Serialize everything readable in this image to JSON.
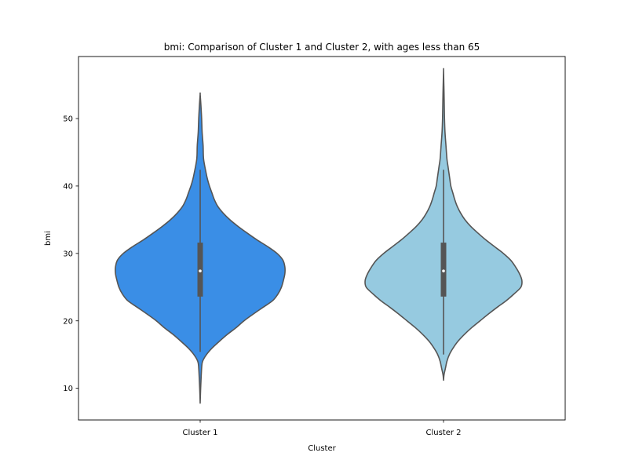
{
  "chart_data": {
    "type": "violin",
    "title": "bmi: Comparison of Cluster 1 and Cluster 2, with ages less than 65",
    "xlabel": "Cluster",
    "ylabel": "bmi",
    "categories": [
      "Cluster 1",
      "Cluster 2"
    ],
    "ylim": [
      5.3,
      59.2
    ],
    "yticks": [
      10,
      20,
      30,
      40,
      50
    ],
    "grid": false,
    "legend": "none",
    "series": [
      {
        "category": "Cluster 1",
        "color": "#3a8ee6",
        "min": 7.8,
        "max": 53.6,
        "q1": 23.6,
        "median": 27.4,
        "q3": 31.6,
        "whisker_low": 15.4,
        "whisker_high": 42.4,
        "density_profile": [
          [
            7.8,
            0.0
          ],
          [
            10,
            0.01
          ],
          [
            13,
            0.03
          ],
          [
            14,
            0.05
          ],
          [
            15,
            0.13
          ],
          [
            16,
            0.25
          ],
          [
            17,
            0.4
          ],
          [
            18,
            0.56
          ],
          [
            19,
            0.74
          ],
          [
            20,
            0.9
          ],
          [
            21,
            1.09
          ],
          [
            22,
            1.29
          ],
          [
            23,
            1.49
          ],
          [
            24,
            1.6
          ],
          [
            25,
            1.67
          ],
          [
            26,
            1.71
          ],
          [
            27,
            1.74
          ],
          [
            28,
            1.74
          ],
          [
            29,
            1.7
          ],
          [
            30,
            1.58
          ],
          [
            31,
            1.39
          ],
          [
            32,
            1.17
          ],
          [
            33,
            0.97
          ],
          [
            34,
            0.78
          ],
          [
            35,
            0.61
          ],
          [
            36,
            0.47
          ],
          [
            37,
            0.36
          ],
          [
            38,
            0.29
          ],
          [
            39,
            0.24
          ],
          [
            40,
            0.19
          ],
          [
            41,
            0.15
          ],
          [
            42,
            0.12
          ],
          [
            44,
            0.07
          ],
          [
            46,
            0.06
          ],
          [
            48,
            0.04
          ],
          [
            50,
            0.03
          ],
          [
            52,
            0.015
          ],
          [
            53.6,
            0.0
          ]
        ]
      },
      {
        "category": "Cluster 2",
        "color": "#96cae0",
        "min": 11.2,
        "max": 57.2,
        "q1": 23.6,
        "median": 27.4,
        "q3": 31.6,
        "whisker_low": 15.0,
        "whisker_high": 42.4,
        "density_profile": [
          [
            11.2,
            0.0
          ],
          [
            12,
            0.01
          ],
          [
            13,
            0.04
          ],
          [
            14,
            0.07
          ],
          [
            15,
            0.12
          ],
          [
            16,
            0.2
          ],
          [
            17,
            0.3
          ],
          [
            18,
            0.43
          ],
          [
            19,
            0.58
          ],
          [
            20,
            0.75
          ],
          [
            21,
            0.92
          ],
          [
            22,
            1.1
          ],
          [
            23,
            1.29
          ],
          [
            24,
            1.45
          ],
          [
            25,
            1.59
          ],
          [
            26,
            1.61
          ],
          [
            27,
            1.56
          ],
          [
            28,
            1.48
          ],
          [
            29,
            1.38
          ],
          [
            30,
            1.23
          ],
          [
            31,
            1.05
          ],
          [
            32,
            0.87
          ],
          [
            33,
            0.71
          ],
          [
            34,
            0.56
          ],
          [
            35,
            0.44
          ],
          [
            36,
            0.35
          ],
          [
            37,
            0.28
          ],
          [
            38,
            0.23
          ],
          [
            39,
            0.19
          ],
          [
            40,
            0.15
          ],
          [
            41,
            0.13
          ],
          [
            42,
            0.11
          ],
          [
            43,
            0.09
          ],
          [
            44,
            0.07
          ],
          [
            46,
            0.05
          ],
          [
            48,
            0.03
          ],
          [
            50,
            0.02
          ],
          [
            52,
            0.015
          ],
          [
            54,
            0.01
          ],
          [
            55.5,
            0.005
          ],
          [
            57.2,
            0.0
          ]
        ]
      }
    ]
  }
}
